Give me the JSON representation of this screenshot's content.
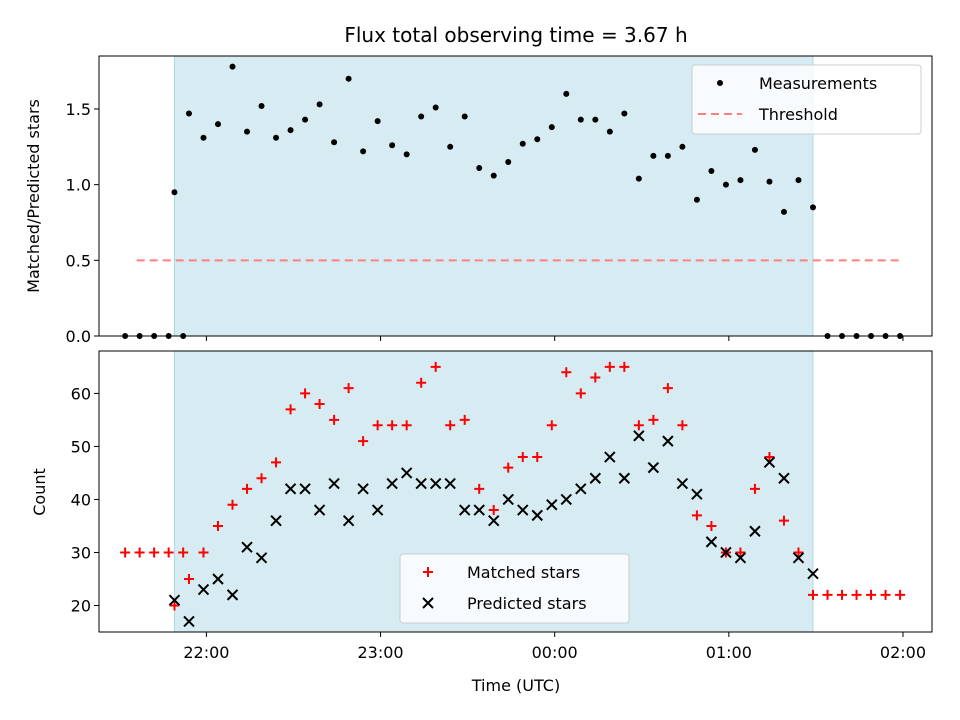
{
  "chart_data": [
    {
      "type": "scatter",
      "title": "Flux total observing time = 3.67 h",
      "xlabel": "",
      "ylabel": "Matched/Predicted stars",
      "xlim": [
        "21:23",
        "02:10"
      ],
      "ylim": [
        0,
        1.85
      ],
      "yticks": [
        "0.0",
        "0.5",
        "1.0",
        "1.5"
      ],
      "shaded_interval": [
        "21:49",
        "01:29"
      ],
      "legend_position": "top-right",
      "series": [
        {
          "name": "Measurements",
          "marker": "dot",
          "color": "#000000",
          "points": [
            [
              "21:32",
              0.0
            ],
            [
              "21:37",
              0.0
            ],
            [
              "21:42",
              0.0
            ],
            [
              "21:47",
              0.0
            ],
            [
              "21:52",
              0.0
            ],
            [
              "21:49",
              0.95
            ],
            [
              "21:54",
              1.47
            ],
            [
              "21:59",
              1.31
            ],
            [
              "22:04",
              1.4
            ],
            [
              "22:09",
              1.78
            ],
            [
              "22:14",
              1.35
            ],
            [
              "22:19",
              1.52
            ],
            [
              "22:24",
              1.31
            ],
            [
              "22:29",
              1.36
            ],
            [
              "22:34",
              1.43
            ],
            [
              "22:39",
              1.53
            ],
            [
              "22:44",
              1.28
            ],
            [
              "22:49",
              1.7
            ],
            [
              "22:54",
              1.22
            ],
            [
              "22:59",
              1.42
            ],
            [
              "23:04",
              1.26
            ],
            [
              "23:09",
              1.2
            ],
            [
              "23:14",
              1.45
            ],
            [
              "23:19",
              1.51
            ],
            [
              "23:24",
              1.25
            ],
            [
              "23:29",
              1.45
            ],
            [
              "23:34",
              1.11
            ],
            [
              "23:39",
              1.06
            ],
            [
              "23:44",
              1.15
            ],
            [
              "23:49",
              1.27
            ],
            [
              "23:54",
              1.3
            ],
            [
              "23:59",
              1.38
            ],
            [
              "00:04",
              1.6
            ],
            [
              "00:09",
              1.43
            ],
            [
              "00:14",
              1.43
            ],
            [
              "00:19",
              1.35
            ],
            [
              "00:24",
              1.47
            ],
            [
              "00:29",
              1.04
            ],
            [
              "00:34",
              1.19
            ],
            [
              "00:39",
              1.19
            ],
            [
              "00:44",
              1.25
            ],
            [
              "00:49",
              0.9
            ],
            [
              "00:54",
              1.09
            ],
            [
              "00:59",
              1.0
            ],
            [
              "01:04",
              1.03
            ],
            [
              "01:09",
              1.23
            ],
            [
              "01:14",
              1.02
            ],
            [
              "01:19",
              0.82
            ],
            [
              "01:24",
              1.03
            ],
            [
              "01:29",
              0.85
            ],
            [
              "01:34",
              0.0
            ],
            [
              "01:39",
              0.0
            ],
            [
              "01:44",
              0.0
            ],
            [
              "01:49",
              0.0
            ],
            [
              "01:54",
              0.0
            ],
            [
              "01:59",
              0.0
            ]
          ]
        },
        {
          "name": "Threshold",
          "marker": "dashed-line",
          "color": "#ff7f7f",
          "points": [
            [
              "21:36",
              0.5
            ],
            [
              "02:00",
              0.5
            ]
          ]
        }
      ]
    },
    {
      "type": "scatter",
      "title": "",
      "xlabel": "Time (UTC)",
      "ylabel": "Count",
      "xlim": [
        "21:23",
        "02:10"
      ],
      "ylim": [
        15,
        68
      ],
      "yticks": [
        "20",
        "30",
        "40",
        "50",
        "60"
      ],
      "xticks": [
        "22:00",
        "23:00",
        "00:00",
        "01:00",
        "02:00"
      ],
      "shaded_interval": [
        "21:49",
        "01:29"
      ],
      "legend_position": "bottom-center",
      "series": [
        {
          "name": "Matched stars",
          "marker": "plus",
          "color": "#ff0000",
          "points": [
            [
              "21:32",
              30
            ],
            [
              "21:37",
              30
            ],
            [
              "21:42",
              30
            ],
            [
              "21:47",
              30
            ],
            [
              "21:52",
              30
            ],
            [
              "21:49",
              20
            ],
            [
              "21:54",
              25
            ],
            [
              "21:59",
              30
            ],
            [
              "22:04",
              35
            ],
            [
              "22:09",
              39
            ],
            [
              "22:14",
              42
            ],
            [
              "22:19",
              44
            ],
            [
              "22:24",
              47
            ],
            [
              "22:29",
              57
            ],
            [
              "22:34",
              60
            ],
            [
              "22:39",
              58
            ],
            [
              "22:44",
              55
            ],
            [
              "22:49",
              61
            ],
            [
              "22:54",
              51
            ],
            [
              "22:59",
              54
            ],
            [
              "23:04",
              54
            ],
            [
              "23:09",
              54
            ],
            [
              "23:14",
              62
            ],
            [
              "23:19",
              65
            ],
            [
              "23:24",
              54
            ],
            [
              "23:29",
              55
            ],
            [
              "23:34",
              42
            ],
            [
              "23:39",
              38
            ],
            [
              "23:44",
              46
            ],
            [
              "23:49",
              48
            ],
            [
              "23:54",
              48
            ],
            [
              "23:59",
              54
            ],
            [
              "00:04",
              64
            ],
            [
              "00:09",
              60
            ],
            [
              "00:14",
              63
            ],
            [
              "00:19",
              65
            ],
            [
              "00:24",
              65
            ],
            [
              "00:29",
              54
            ],
            [
              "00:34",
              55
            ],
            [
              "00:39",
              61
            ],
            [
              "00:44",
              54
            ],
            [
              "00:49",
              37
            ],
            [
              "00:54",
              35
            ],
            [
              "00:59",
              30
            ],
            [
              "01:04",
              30
            ],
            [
              "01:09",
              42
            ],
            [
              "01:14",
              48
            ],
            [
              "01:19",
              36
            ],
            [
              "01:24",
              30
            ],
            [
              "01:29",
              22
            ],
            [
              "01:34",
              22
            ],
            [
              "01:39",
              22
            ],
            [
              "01:44",
              22
            ],
            [
              "01:49",
              22
            ],
            [
              "01:54",
              22
            ],
            [
              "01:59",
              22
            ]
          ]
        },
        {
          "name": "Predicted stars",
          "marker": "x",
          "color": "#000000",
          "points": [
            [
              "21:49",
              21
            ],
            [
              "21:54",
              17
            ],
            [
              "21:59",
              23
            ],
            [
              "22:04",
              25
            ],
            [
              "22:09",
              22
            ],
            [
              "22:14",
              31
            ],
            [
              "22:19",
              29
            ],
            [
              "22:24",
              36
            ],
            [
              "22:29",
              42
            ],
            [
              "22:34",
              42
            ],
            [
              "22:39",
              38
            ],
            [
              "22:44",
              43
            ],
            [
              "22:49",
              36
            ],
            [
              "22:54",
              42
            ],
            [
              "22:59",
              38
            ],
            [
              "23:04",
              43
            ],
            [
              "23:09",
              45
            ],
            [
              "23:14",
              43
            ],
            [
              "23:19",
              43
            ],
            [
              "23:24",
              43
            ],
            [
              "23:29",
              38
            ],
            [
              "23:34",
              38
            ],
            [
              "23:39",
              36
            ],
            [
              "23:44",
              40
            ],
            [
              "23:49",
              38
            ],
            [
              "23:54",
              37
            ],
            [
              "23:59",
              39
            ],
            [
              "00:04",
              40
            ],
            [
              "00:09",
              42
            ],
            [
              "00:14",
              44
            ],
            [
              "00:19",
              48
            ],
            [
              "00:24",
              44
            ],
            [
              "00:29",
              52
            ],
            [
              "00:34",
              46
            ],
            [
              "00:39",
              51
            ],
            [
              "00:44",
              43
            ],
            [
              "00:49",
              41
            ],
            [
              "00:54",
              32
            ],
            [
              "00:59",
              30
            ],
            [
              "01:04",
              29
            ],
            [
              "01:09",
              34
            ],
            [
              "01:14",
              47
            ],
            [
              "01:19",
              44
            ],
            [
              "01:24",
              29
            ],
            [
              "01:29",
              26
            ]
          ]
        }
      ]
    }
  ]
}
